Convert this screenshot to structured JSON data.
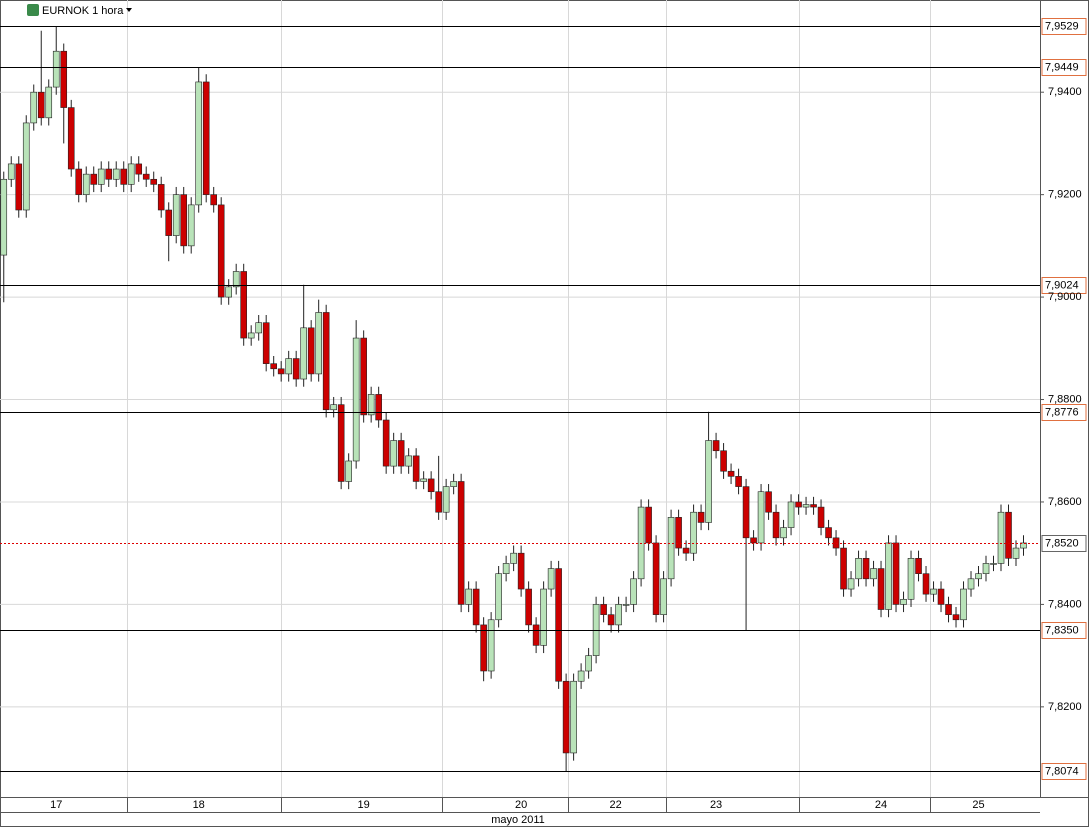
{
  "chart_data": {
    "type": "candlestick",
    "title": "EURNOK 1 hora",
    "x_label": "mayo 2011",
    "xlim": [
      -0.5,
      138.2
    ],
    "xticks": [
      {
        "value": 7,
        "label": "17"
      },
      {
        "value": 26,
        "label": "18"
      },
      {
        "value": 48,
        "label": "19"
      },
      {
        "value": 69,
        "label": "20"
      },
      {
        "value": 81.6,
        "label": "22"
      },
      {
        "value": 95,
        "label": "23"
      },
      {
        "value": 117,
        "label": "24"
      },
      {
        "value": 130,
        "label": "25"
      }
    ],
    "ylim": [
      7.8024,
      7.958
    ],
    "yticks": [
      {
        "value": 7.82,
        "label": "7,8200"
      },
      {
        "value": 7.84,
        "label": "7,8400"
      },
      {
        "value": 7.86,
        "label": "7,8600"
      },
      {
        "value": 7.88,
        "label": "7,8800"
      },
      {
        "value": 7.9,
        "label": "7,9000"
      },
      {
        "value": 7.92,
        "label": "7,9200"
      },
      {
        "value": 7.94,
        "label": "7,9400"
      }
    ],
    "grid": true,
    "up_color": "#b9e3b9",
    "down_color": "#cc0000",
    "levels": [
      {
        "value": 7.9529,
        "label": "7,9529"
      },
      {
        "value": 7.9449,
        "label": "7,9449"
      },
      {
        "value": 7.9024,
        "label": "7,9024"
      },
      {
        "value": 7.8776,
        "label": "7,8776"
      },
      {
        "value": 7.835,
        "label": "7,8350"
      },
      {
        "value": 7.8074,
        "label": "7,8074"
      }
    ],
    "last": {
      "value": 7.852,
      "label": "7,8520"
    },
    "open": [
      7.9082,
      7.923,
      7.926,
      7.917,
      7.934,
      7.94,
      7.935,
      7.941,
      7.948,
      7.937,
      7.925,
      7.92,
      7.924,
      7.922,
      7.925,
      7.923,
      7.925,
      7.922,
      7.926,
      7.924,
      7.923,
      7.922,
      7.917,
      7.912,
      7.92,
      7.91,
      7.918,
      7.942,
      7.92,
      7.918,
      7.9,
      7.902,
      7.905,
      7.892,
      7.893,
      7.895,
      7.887,
      7.886,
      7.885,
      7.888,
      7.884,
      7.894,
      7.885,
      7.897,
      7.878,
      7.879,
      7.864,
      7.868,
      7.892,
      7.877,
      7.881,
      7.876,
      7.867,
      7.872,
      7.867,
      7.869,
      7.864,
      7.8645,
      7.862,
      7.858,
      7.863,
      7.864,
      7.84,
      7.843,
      7.836,
      7.827,
      7.837,
      7.846,
      7.848,
      7.85,
      7.843,
      7.836,
      7.832,
      7.843,
      7.847,
      7.825,
      7.811,
      7.825,
      7.827,
      7.83,
      7.84,
      7.838,
      7.836,
      7.84,
      7.84,
      7.845,
      7.859,
      7.852,
      7.838,
      7.845,
      7.857,
      7.851,
      7.85,
      7.858,
      7.856,
      7.872,
      7.87,
      7.866,
      7.865,
      7.863,
      7.853,
      7.852,
      7.862,
      7.858,
      7.853,
      7.855,
      7.86,
      7.859,
      7.8595,
      7.859,
      7.855,
      7.853,
      7.851,
      7.843,
      7.845,
      7.849,
      7.845,
      7.847,
      7.839,
      7.852,
      7.84,
      7.841,
      7.849,
      7.846,
      7.842,
      7.843,
      7.84,
      7.838,
      7.837,
      7.843,
      7.845,
      7.846,
      7.848,
      7.848,
      7.858,
      7.849,
      7.851
    ],
    "high": [
      7.9245,
      7.9275,
      7.9275,
      7.9355,
      7.9415,
      7.952,
      7.9425,
      7.9529,
      7.9495,
      7.9385,
      7.9265,
      7.9255,
      7.9255,
      7.9265,
      7.9265,
      7.9265,
      7.9265,
      7.9275,
      7.9275,
      7.9255,
      7.9245,
      7.9235,
      7.9185,
      7.9215,
      7.9215,
      7.9195,
      7.9449,
      7.9435,
      7.9215,
      7.9195,
      7.9035,
      7.9065,
      7.9065,
      7.8945,
      7.8965,
      7.8965,
      7.8885,
      7.8875,
      7.8895,
      7.8895,
      7.9024,
      7.8955,
      7.8995,
      7.8985,
      7.8805,
      7.8805,
      7.8695,
      7.8955,
      7.8935,
      7.8825,
      7.8825,
      7.8775,
      7.8735,
      7.8735,
      7.8705,
      7.8705,
      7.866,
      7.866,
      7.869,
      7.8645,
      7.8655,
      7.8655,
      7.8445,
      7.8445,
      7.8375,
      7.8385,
      7.8475,
      7.8495,
      7.8515,
      7.8515,
      7.8445,
      7.8375,
      7.8445,
      7.8485,
      7.8485,
      7.8265,
      7.8265,
      7.8285,
      7.8315,
      7.8415,
      7.8415,
      7.8395,
      7.8415,
      7.8415,
      7.8465,
      7.8605,
      7.8605,
      7.8535,
      7.8465,
      7.8585,
      7.8585,
      7.8525,
      7.8595,
      7.8595,
      7.8776,
      7.8735,
      7.8715,
      7.8675,
      7.8665,
      7.8645,
      7.8545,
      7.8635,
      7.8635,
      7.8595,
      7.8565,
      7.8615,
      7.8615,
      7.861,
      7.861,
      7.8605,
      7.8565,
      7.8545,
      7.8525,
      7.8465,
      7.8505,
      7.8505,
      7.8485,
      7.8485,
      7.8535,
      7.8535,
      7.8425,
      7.8505,
      7.8505,
      7.8475,
      7.8445,
      7.8445,
      7.8415,
      7.8395,
      7.8445,
      7.8465,
      7.8475,
      7.8495,
      7.8495,
      7.8595,
      7.8595,
      7.8525,
      7.8535
    ],
    "low": [
      7.899,
      7.9215,
      7.9155,
      7.9155,
      7.9325,
      7.9335,
      7.9335,
      7.9395,
      7.93,
      7.9235,
      7.9185,
      7.9185,
      7.9205,
      7.9205,
      7.9215,
      7.9215,
      7.9205,
      7.9205,
      7.9225,
      7.9215,
      7.9205,
      7.9155,
      7.907,
      7.9105,
      7.9085,
      7.9085,
      7.9165,
      7.9185,
      7.9165,
      7.8985,
      7.8985,
      7.9005,
      7.8905,
      7.8905,
      7.8915,
      7.8855,
      7.8845,
      7.8835,
      7.8835,
      7.8825,
      7.8825,
      7.8835,
      7.8835,
      7.8765,
      7.8765,
      7.8625,
      7.8625,
      7.8665,
      7.8755,
      7.8755,
      7.8745,
      7.8655,
      7.8655,
      7.8655,
      7.8655,
      7.8625,
      7.8625,
      7.8605,
      7.8565,
      7.8565,
      7.8615,
      7.8385,
      7.8385,
      7.8345,
      7.825,
      7.8255,
      7.8355,
      7.8445,
      7.8465,
      7.8415,
      7.8345,
      7.8305,
      7.8305,
      7.8415,
      7.8235,
      7.8074,
      7.8095,
      7.8235,
      7.8255,
      7.8285,
      7.8365,
      7.8345,
      7.8345,
      7.8385,
      7.8385,
      7.8435,
      7.8505,
      7.8365,
      7.8365,
      7.8435,
      7.8495,
      7.8485,
      7.8485,
      7.8545,
      7.8545,
      7.8685,
      7.8645,
      7.8635,
      7.8615,
      7.835,
      7.8505,
      7.8505,
      7.8565,
      7.8515,
      7.8515,
      7.8535,
      7.8575,
      7.8575,
      7.8575,
      7.8535,
      7.8515,
      7.8495,
      7.8415,
      7.8415,
      7.8435,
      7.8435,
      7.8435,
      7.8375,
      7.8375,
      7.8385,
      7.8385,
      7.8395,
      7.8445,
      7.8405,
      7.8405,
      7.8385,
      7.8365,
      7.8355,
      7.8355,
      7.8415,
      7.8435,
      7.8445,
      7.8465,
      7.8465,
      7.8475,
      7.8475,
      7.8495
    ],
    "close": [
      7.923,
      7.926,
      7.917,
      7.934,
      7.94,
      7.935,
      7.941,
      7.948,
      7.937,
      7.925,
      7.92,
      7.924,
      7.922,
      7.925,
      7.923,
      7.925,
      7.922,
      7.926,
      7.924,
      7.923,
      7.922,
      7.917,
      7.912,
      7.92,
      7.91,
      7.918,
      7.942,
      7.92,
      7.918,
      7.9,
      7.902,
      7.905,
      7.892,
      7.893,
      7.895,
      7.887,
      7.886,
      7.885,
      7.888,
      7.884,
      7.894,
      7.885,
      7.897,
      7.878,
      7.879,
      7.864,
      7.868,
      7.892,
      7.877,
      7.881,
      7.876,
      7.867,
      7.872,
      7.867,
      7.869,
      7.864,
      7.8645,
      7.862,
      7.858,
      7.863,
      7.864,
      7.84,
      7.843,
      7.836,
      7.827,
      7.837,
      7.846,
      7.848,
      7.85,
      7.843,
      7.836,
      7.832,
      7.843,
      7.847,
      7.825,
      7.811,
      7.825,
      7.827,
      7.83,
      7.84,
      7.838,
      7.836,
      7.84,
      7.84,
      7.845,
      7.859,
      7.852,
      7.838,
      7.845,
      7.857,
      7.851,
      7.85,
      7.858,
      7.856,
      7.872,
      7.87,
      7.866,
      7.865,
      7.863,
      7.853,
      7.852,
      7.862,
      7.858,
      7.853,
      7.855,
      7.86,
      7.859,
      7.8595,
      7.859,
      7.855,
      7.853,
      7.851,
      7.843,
      7.845,
      7.849,
      7.845,
      7.847,
      7.839,
      7.852,
      7.84,
      7.841,
      7.849,
      7.846,
      7.842,
      7.843,
      7.84,
      7.838,
      7.837,
      7.843,
      7.845,
      7.846,
      7.848,
      7.848,
      7.858,
      7.849,
      7.851,
      7.852
    ]
  }
}
